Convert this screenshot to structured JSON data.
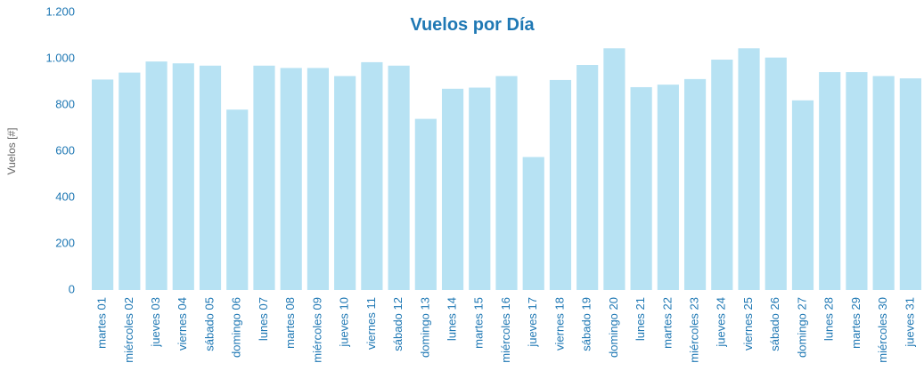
{
  "chart_data": {
    "type": "bar",
    "title": "Vuelos por Día",
    "y_label": "Vuelos [#]",
    "categories": [
      "martes 01",
      "miércoles 02",
      "jueves 03",
      "viernes 04",
      "sábado 05",
      "domingo 06",
      "lunes 07",
      "martes 08",
      "miércoles 09",
      "jueves 10",
      "viernes 11",
      "sábado 12",
      "domingo 13",
      "lunes 14",
      "martes 15",
      "miércoles 16",
      "jueves 17",
      "viernes 18",
      "sábado 19",
      "domingo 20",
      "lunes 21",
      "martes 22",
      "miércoles 23",
      "jueves 24",
      "viernes 25",
      "sábado 26",
      "domingo 27",
      "lunes 28",
      "martes 29",
      "miércoles 30",
      "jueves 31"
    ],
    "values": [
      910,
      940,
      988,
      980,
      970,
      780,
      970,
      960,
      960,
      925,
      985,
      970,
      740,
      870,
      875,
      925,
      575,
      908,
      973,
      1045,
      877,
      888,
      912,
      996,
      1045,
      1005,
      820,
      942,
      942,
      925,
      915
    ],
    "color": "#b7e2f3",
    "ylim": [
      0,
      1200
    ],
    "yticks": [
      0,
      200,
      400,
      600,
      800,
      {
        "value": 1000,
        "label": "1.000"
      },
      {
        "value": 1200,
        "label": "1.200"
      }
    ],
    "grid": false
  }
}
